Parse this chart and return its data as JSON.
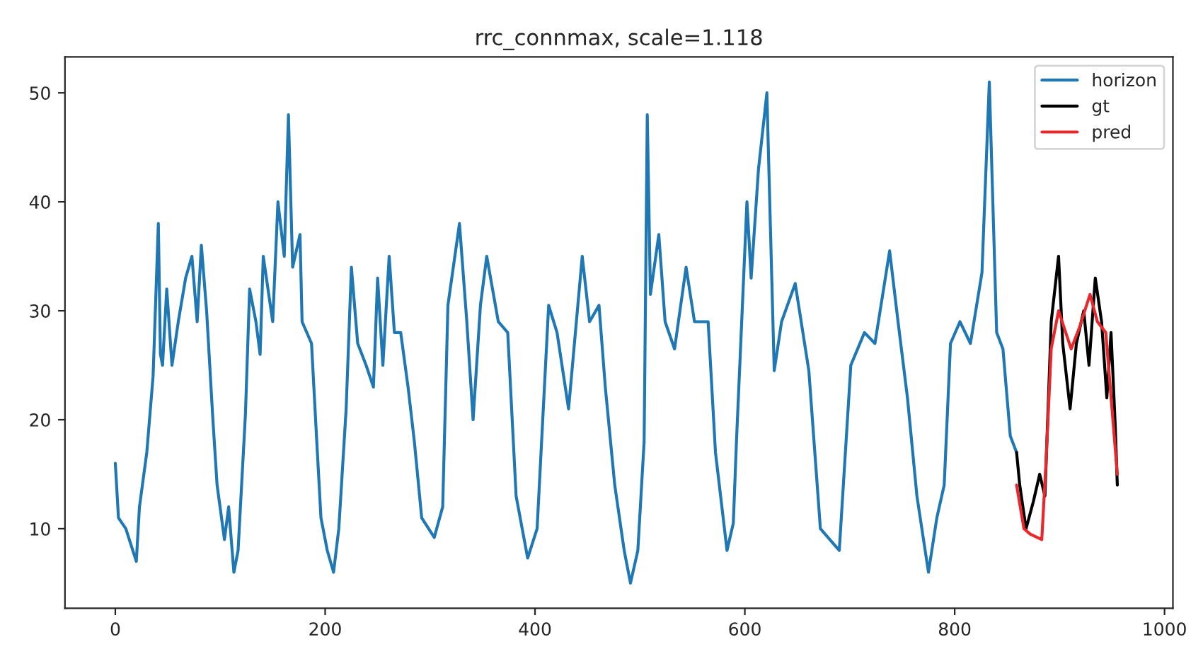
{
  "chart_data": {
    "type": "line",
    "title": "rrc_connmax, scale=1.118",
    "series": [
      {
        "name": "horizon",
        "color": "#1f77b4",
        "x": [
          0,
          3,
          10,
          20,
          23,
          30,
          36,
          41,
          43,
          45,
          49,
          54,
          60,
          67,
          73,
          78,
          82,
          87,
          93,
          97,
          104,
          108,
          113,
          117,
          124,
          128,
          134,
          138,
          141,
          150,
          155,
          161,
          165,
          169,
          176,
          178,
          187,
          192,
          196,
          202,
          208,
          213,
          220,
          225,
          231,
          239,
          246,
          250,
          255,
          261,
          266,
          272,
          279,
          285,
          292,
          304,
          312,
          317,
          328,
          335,
          341,
          348,
          354,
          365,
          374,
          382,
          393,
          402,
          413,
          421,
          432,
          445,
          452,
          461,
          467,
          476,
          485,
          491,
          498,
          504,
          507,
          510,
          518,
          524,
          533,
          544,
          552,
          565,
          572,
          583,
          589,
          592,
          602,
          606,
          613,
          621,
          624,
          628,
          635,
          648,
          661,
          672,
          681,
          690,
          701,
          714,
          724,
          738,
          746,
          755,
          764,
          775,
          783,
          790,
          796,
          805,
          815,
          826,
          833,
          840,
          846,
          853,
          859
        ],
        "values": [
          16,
          11,
          10,
          7,
          12,
          17,
          24,
          38,
          26,
          25,
          32,
          25,
          29,
          33,
          35,
          29,
          36,
          30,
          20,
          14,
          9,
          12,
          6,
          8,
          20.5,
          32,
          29,
          26,
          35,
          29,
          40,
          35,
          48,
          34,
          37,
          29,
          27,
          18,
          11,
          8,
          6,
          10,
          21,
          34,
          27,
          25,
          23,
          33,
          25,
          35,
          28,
          28,
          23,
          18,
          11,
          9.2,
          12,
          30.5,
          38,
          29,
          20,
          30.5,
          35,
          29,
          28,
          13,
          7.3,
          10,
          30.5,
          28,
          21,
          35,
          29,
          30.5,
          23,
          14,
          8,
          5,
          8,
          18,
          48,
          31.5,
          37,
          29,
          26.5,
          34,
          29,
          29,
          17,
          8,
          10.5,
          18,
          40,
          33,
          43,
          50,
          39,
          24.5,
          29,
          32.5,
          24.5,
          10,
          9,
          8,
          25,
          28,
          27,
          35.5,
          29,
          22,
          13,
          6,
          11,
          14,
          27,
          29,
          27,
          33.5,
          51,
          28,
          26.5,
          18.5,
          17
        ]
      },
      {
        "name": "gt",
        "color": "#000000",
        "x": [
          859,
          862,
          868,
          875,
          881,
          886,
          892,
          899,
          903,
          910,
          916,
          923,
          928,
          934,
          940,
          945,
          949,
          953,
          955
        ],
        "values": [
          17,
          14,
          10,
          12.5,
          15,
          13,
          29,
          35,
          27,
          21,
          27,
          30,
          25,
          33,
          29,
          22,
          28,
          19.5,
          14
        ]
      },
      {
        "name": "pred",
        "color": "#e8282b",
        "x": [
          859,
          866,
          872,
          883,
          887,
          892,
          899,
          911,
          919,
          929,
          936,
          944,
          955
        ],
        "values": [
          14,
          10,
          9.5,
          9,
          16,
          26.5,
          30,
          26.5,
          28.5,
          31.5,
          29,
          28,
          15
        ]
      }
    ],
    "xlim": [
      -48,
      1008
    ],
    "xticks": [
      0,
      200,
      400,
      600,
      800,
      1000
    ],
    "ylim": [
      2.7,
      53.3
    ],
    "yticks": [
      10,
      20,
      30,
      40,
      50
    ],
    "legend": "top right",
    "grid": false
  }
}
